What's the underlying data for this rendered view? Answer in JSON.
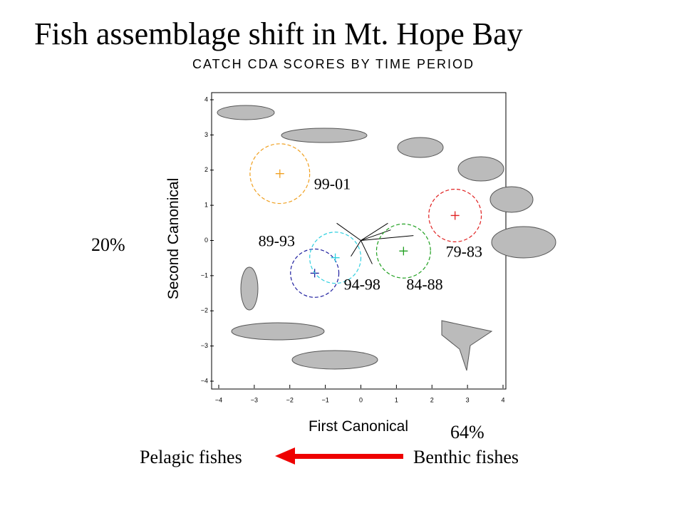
{
  "chart_data": {
    "type": "scatter",
    "title": "Fish assemblage shift in Mt. Hope Bay",
    "subtitle": "CATCH CDA SCORES BY TIME PERIOD",
    "x_label": "First Canonical",
    "y_label": "Second Canonical",
    "annotations": {
      "x_variance": "64%",
      "y_variance": "20%",
      "left": "Pelagic fishes",
      "right": "Benthic fishes"
    },
    "xlim": [
      -4,
      4
    ],
    "ylim": [
      -4,
      4
    ],
    "xticks": [
      {
        "value": -4,
        "label": "−4"
      },
      {
        "value": -3,
        "label": "−3"
      },
      {
        "value": -2,
        "label": "−2"
      },
      {
        "value": -1,
        "label": "−1"
      },
      0,
      1,
      2,
      3,
      4
    ],
    "yticks": [
      {
        "value": -4,
        "label": "−4"
      },
      {
        "value": -3,
        "label": "−3"
      },
      {
        "value": -2,
        "label": "−2"
      },
      {
        "value": -1,
        "label": "−1"
      },
      0,
      1,
      2,
      3,
      4
    ],
    "series": [
      {
        "name": "99-01",
        "color": "#f0a020",
        "x": -2.28,
        "y": 1.9,
        "r": 0.84
      },
      {
        "name": "79-83",
        "color": "#e02020",
        "x": 2.65,
        "y": 0.71,
        "r": 0.74
      },
      {
        "name": "84-88",
        "color": "#20a020",
        "x": 1.2,
        "y": -0.3,
        "r": 0.76
      },
      {
        "name": "89-93",
        "color": "#2020a0",
        "x": -1.3,
        "y": -0.93,
        "r": 0.68
      },
      {
        "name": "94-98",
        "color": "#30d0e0",
        "x": -0.72,
        "y": -0.49,
        "r": 0.72
      }
    ],
    "vectors": {
      "x": [
        0.76,
        0.84,
        1.48,
        -0.68,
        -0.28,
        0.32
      ],
      "y": [
        0.49,
        0.3,
        0.14,
        0.49,
        -0.45,
        -0.67
      ]
    }
  }
}
